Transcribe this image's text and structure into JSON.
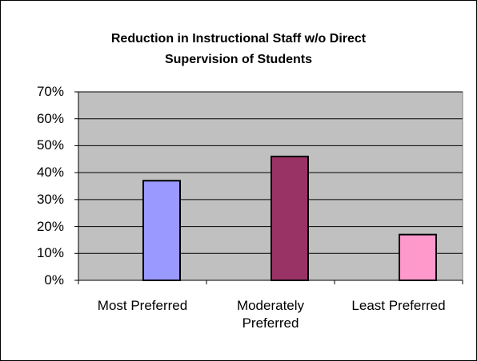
{
  "chart_data": {
    "type": "bar",
    "title": "Reduction in Instructional Staff w/o Direct Supervision of Students",
    "categories": [
      "Most Preferred",
      "Moderately Preferred",
      "Least Preferred"
    ],
    "values": [
      37,
      46,
      17
    ],
    "colors": [
      "#9999ff",
      "#993366",
      "#ff99cc"
    ],
    "ylim": [
      0,
      70
    ],
    "yticks": [
      {
        "value": 0,
        "label": "0%"
      },
      {
        "value": 10,
        "label": "10%"
      },
      {
        "value": 20,
        "label": "20%"
      },
      {
        "value": 30,
        "label": "30%"
      },
      {
        "value": 40,
        "label": "40%"
      },
      {
        "value": 50,
        "label": "50%"
      },
      {
        "value": 60,
        "label": "60%"
      },
      {
        "value": 70,
        "label": "70%"
      }
    ],
    "grid": true
  }
}
